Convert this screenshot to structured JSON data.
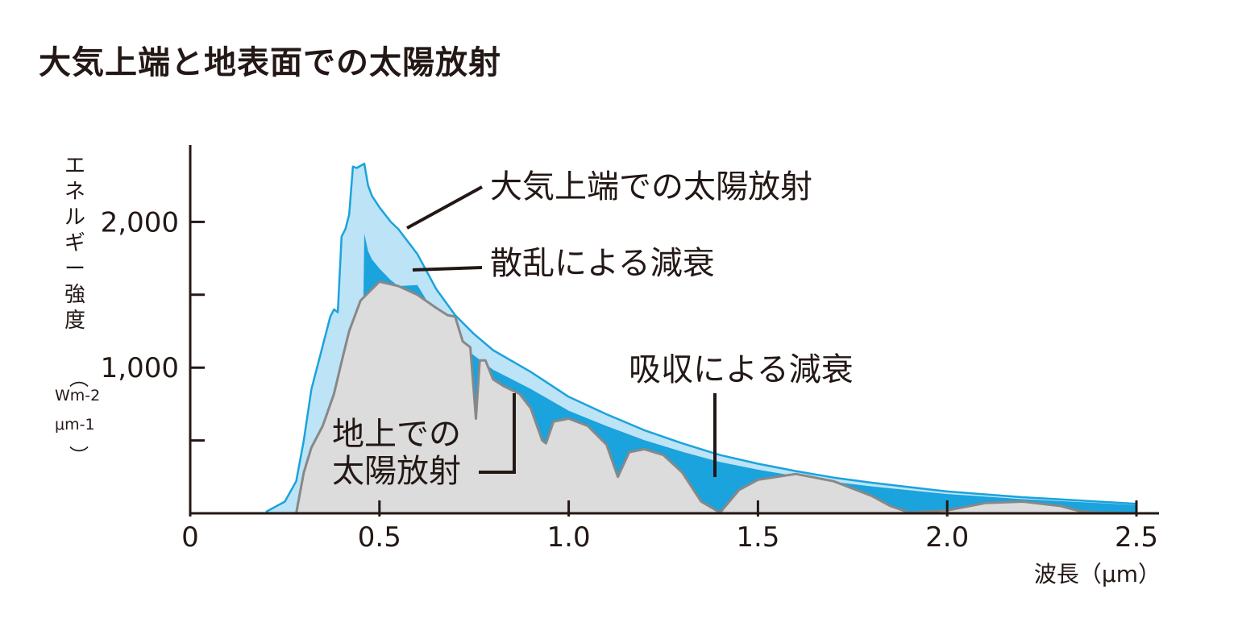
{
  "title": "大気上端と地表面での太陽放射",
  "axis": {
    "ylabel": "エネルギー強度",
    "ylabel_unit_line1": "Wm-2",
    "ylabel_unit_line2": "μm-1",
    "xlabel": "波長（μm）"
  },
  "annotations": {
    "toa": "大気上端での太陽放射",
    "scattering": "散乱による減衰",
    "absorption": "吸収による減衰",
    "ground_line1": "地上での",
    "ground_line2": "太陽放射"
  },
  "colors": {
    "toa_fill": "#bde3f6",
    "toa_line": "#1aa3dc",
    "absorption_fill": "#1aa3dc",
    "ground_fill": "#dcdcdc",
    "ground_line": "#888888",
    "axis": "#231815"
  },
  "chart_data": {
    "type": "area",
    "xlim": [
      0,
      2.5
    ],
    "ylim": [
      0,
      2500
    ],
    "x_ticks": [
      0,
      0.5,
      1.0,
      1.5,
      2.0,
      2.5
    ],
    "x_tick_labels": [
      "0",
      "0.5",
      "1.0",
      "1.5",
      "2.0",
      "2.5"
    ],
    "y_ticks": [
      500,
      1000,
      1500,
      2000
    ],
    "y_tick_labels": [
      "",
      "1,000",
      "",
      "2,000"
    ],
    "grid": false,
    "series": [
      {
        "name": "大気上端での太陽放射",
        "x": [
          0.2,
          0.25,
          0.28,
          0.3,
          0.32,
          0.35,
          0.37,
          0.38,
          0.39,
          0.4,
          0.41,
          0.42,
          0.43,
          0.44,
          0.46,
          0.47,
          0.48,
          0.5,
          0.53,
          0.55,
          0.6,
          0.65,
          0.7,
          0.75,
          0.8,
          0.9,
          1.0,
          1.1,
          1.2,
          1.3,
          1.4,
          1.5,
          1.6,
          1.7,
          1.8,
          1.9,
          2.0,
          2.1,
          2.2,
          2.3,
          2.4,
          2.5
        ],
        "y": [
          10,
          80,
          220,
          500,
          850,
          1150,
          1350,
          1400,
          1380,
          1900,
          1950,
          2050,
          2380,
          2370,
          2400,
          2250,
          2180,
          2100,
          2000,
          1950,
          1780,
          1540,
          1360,
          1230,
          1120,
          970,
          800,
          680,
          570,
          480,
          400,
          340,
          290,
          245,
          210,
          180,
          150,
          130,
          110,
          95,
          80,
          65
        ]
      },
      {
        "name": "地上での太陽放射",
        "x": [
          0.28,
          0.3,
          0.32,
          0.35,
          0.38,
          0.4,
          0.42,
          0.45,
          0.5,
          0.55,
          0.6,
          0.65,
          0.68,
          0.7,
          0.72,
          0.74,
          0.755,
          0.765,
          0.78,
          0.8,
          0.83,
          0.87,
          0.9,
          0.93,
          0.94,
          0.96,
          1.0,
          1.05,
          1.1,
          1.13,
          1.16,
          1.2,
          1.25,
          1.3,
          1.35,
          1.4,
          1.45,
          1.5,
          1.6,
          1.7,
          1.8,
          1.85,
          1.9,
          2.0,
          2.1,
          2.2,
          2.3,
          2.35,
          2.4,
          2.5
        ],
        "y": [
          0,
          280,
          450,
          600,
          820,
          1040,
          1250,
          1460,
          1590,
          1560,
          1500,
          1410,
          1360,
          1350,
          1180,
          1140,
          650,
          1050,
          1050,
          920,
          870,
          820,
          720,
          500,
          480,
          630,
          650,
          600,
          470,
          250,
          420,
          440,
          400,
          280,
          80,
          5,
          160,
          230,
          270,
          220,
          120,
          50,
          5,
          20,
          70,
          80,
          50,
          15,
          5,
          0
        ]
      }
    ]
  }
}
